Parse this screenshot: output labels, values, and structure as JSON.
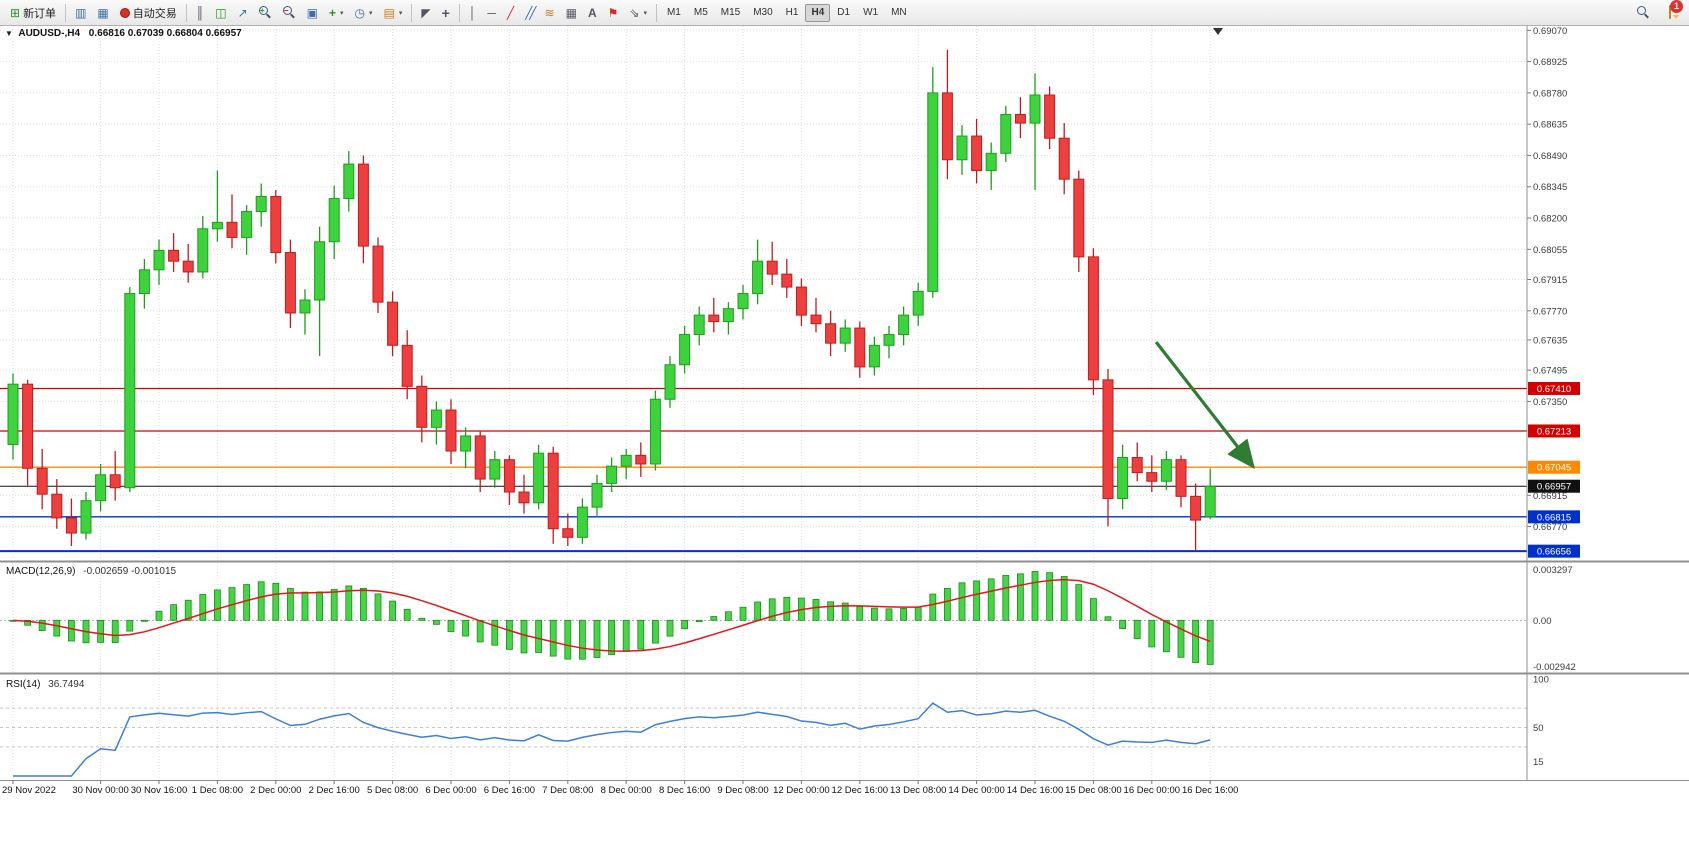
{
  "toolbar": {
    "new_order_label": "新订单",
    "algo_trading_label": "自动交易",
    "timeframes": [
      "M1",
      "M5",
      "M15",
      "M30",
      "H1",
      "H4",
      "D1",
      "W1",
      "MN"
    ],
    "active_timeframe": "H4",
    "notification_count": "1"
  },
  "icons": {
    "title_dropdown": "▼",
    "new_order": "⊞",
    "market_watch": "▥",
    "data_window": "▦",
    "algo_dot": "●",
    "bars": "║",
    "candles": "◫",
    "line": "↗",
    "tile": "▣",
    "indicator_plus": "+",
    "clock": "◷",
    "template": "▤",
    "cursor": "◤",
    "crosshair": "+",
    "vline": "│",
    "hline": "─",
    "trendline": "╱",
    "channel": "╱╱",
    "fibonacci": "≋",
    "shapes": "▦",
    "text_tool": "A",
    "label_flag": "⚑",
    "arrows": "⇘",
    "caret": "▾"
  },
  "chart_data": {
    "type": "candlestick",
    "title": "AUDUSD-,H4",
    "ohlc_text": "0.66816 0.67039 0.66804 0.66957",
    "current": {
      "open": 0.66816,
      "high": 0.67039,
      "low": 0.66804,
      "close": 0.66957
    },
    "price_axis": {
      "top": 0.6909,
      "bottom": 0.66615,
      "ticks": [
        "0.69070",
        "0.68925",
        "0.68780",
        "0.68635",
        "0.68490",
        "0.68345",
        "0.68200",
        "0.68055",
        "0.67915",
        "0.67770",
        "0.67635",
        "0.67495",
        "0.67350",
        "0.66915",
        "0.66770"
      ]
    },
    "levels": [
      {
        "price": 0.6741,
        "label": "0.67410",
        "color": "#d40000",
        "width": 1.2
      },
      {
        "price": 0.67213,
        "label": "0.67213",
        "color": "#d40000",
        "width": 1.2
      },
      {
        "price": 0.67045,
        "label": "0.67045",
        "color": "#ff8a00",
        "width": 1.4
      },
      {
        "price": 0.66957,
        "label": "0.66957",
        "color": "#111111",
        "width": 1
      },
      {
        "price": 0.66815,
        "label": "0.66815",
        "color": "#0030cc",
        "width": 1.4
      },
      {
        "price": 0.66656,
        "label": "0.66656",
        "color": "#0030cc",
        "width": 2
      }
    ],
    "trend_arrow": {
      "from": {
        "bar": 78.3,
        "price": 0.67625
      },
      "to": {
        "bar": 84.8,
        "price": 0.6706
      },
      "color": "#2e7d32"
    },
    "time_labels": [
      {
        "text": "29 Nov 2022",
        "bar": 0
      },
      {
        "text": "30 Nov 00:00",
        "bar": 6
      },
      {
        "text": "30 Nov 16:00",
        "bar": 10
      },
      {
        "text": "1 Dec 08:00",
        "bar": 14
      },
      {
        "text": "2 Dec 00:00",
        "bar": 18
      },
      {
        "text": "2 Dec 16:00",
        "bar": 22
      },
      {
        "text": "5 Dec 08:00",
        "bar": 26
      },
      {
        "text": "6 Dec 00:00",
        "bar": 30
      },
      {
        "text": "6 Dec 16:00",
        "bar": 34
      },
      {
        "text": "7 Dec 08:00",
        "bar": 38
      },
      {
        "text": "8 Dec 00:00",
        "bar": 42
      },
      {
        "text": "8 Dec 16:00",
        "bar": 46
      },
      {
        "text": "9 Dec 08:00",
        "bar": 50
      },
      {
        "text": "12 Dec 00:00",
        "bar": 54
      },
      {
        "text": "12 Dec 16:00",
        "bar": 58
      },
      {
        "text": "13 Dec 08:00",
        "bar": 62
      },
      {
        "text": "14 Dec 00:00",
        "bar": 66
      },
      {
        "text": "14 Dec 16:00",
        "bar": 70
      },
      {
        "text": "15 Dec 08:00",
        "bar": 74
      },
      {
        "text": "16 Dec 00:00",
        "bar": 78
      },
      {
        "text": "16 Dec 16:00",
        "bar": 82
      }
    ],
    "colors": {
      "up_fill": "#3fd23f",
      "up_stroke": "#1d9e1d",
      "down_fill": "#ec3f3f",
      "down_stroke": "#bf1d1d",
      "grid": "#dedede"
    },
    "candles": [
      [
        0.6715,
        0.6748,
        0.6708,
        0.6743
      ],
      [
        0.6743,
        0.6745,
        0.6696,
        0.6704
      ],
      [
        0.6704,
        0.6713,
        0.6685,
        0.6692
      ],
      [
        0.6692,
        0.6699,
        0.6676,
        0.6681
      ],
      [
        0.6681,
        0.669,
        0.6668,
        0.6674
      ],
      [
        0.6674,
        0.6693,
        0.6671,
        0.6689
      ],
      [
        0.6689,
        0.6706,
        0.6684,
        0.6701
      ],
      [
        0.6701,
        0.6712,
        0.6689,
        0.6695
      ],
      [
        0.6695,
        0.6788,
        0.6693,
        0.6785
      ],
      [
        0.6785,
        0.6801,
        0.6778,
        0.6796
      ],
      [
        0.6796,
        0.681,
        0.6789,
        0.6805
      ],
      [
        0.6805,
        0.6813,
        0.6795,
        0.68
      ],
      [
        0.68,
        0.6808,
        0.679,
        0.6795
      ],
      [
        0.6795,
        0.6821,
        0.6792,
        0.6815
      ],
      [
        0.6815,
        0.6842,
        0.6809,
        0.6818
      ],
      [
        0.6818,
        0.6831,
        0.6806,
        0.6811
      ],
      [
        0.6811,
        0.6826,
        0.6803,
        0.6823
      ],
      [
        0.6823,
        0.6836,
        0.6816,
        0.683
      ],
      [
        0.683,
        0.6833,
        0.6799,
        0.6804
      ],
      [
        0.6804,
        0.681,
        0.6769,
        0.6776
      ],
      [
        0.6776,
        0.6787,
        0.6766,
        0.6782
      ],
      [
        0.6782,
        0.6816,
        0.6756,
        0.6809
      ],
      [
        0.6809,
        0.6835,
        0.6801,
        0.6829
      ],
      [
        0.6829,
        0.6851,
        0.6823,
        0.6845
      ],
      [
        0.6845,
        0.6849,
        0.6799,
        0.6807
      ],
      [
        0.6807,
        0.6811,
        0.6776,
        0.6781
      ],
      [
        0.6781,
        0.6786,
        0.6756,
        0.6761
      ],
      [
        0.6761,
        0.6768,
        0.6736,
        0.6742
      ],
      [
        0.6742,
        0.6747,
        0.6716,
        0.6723
      ],
      [
        0.6723,
        0.6735,
        0.6715,
        0.6731
      ],
      [
        0.6731,
        0.6736,
        0.6706,
        0.6712
      ],
      [
        0.6712,
        0.6723,
        0.6704,
        0.6719
      ],
      [
        0.6719,
        0.6721,
        0.6693,
        0.6699
      ],
      [
        0.6699,
        0.6712,
        0.6695,
        0.6708
      ],
      [
        0.6708,
        0.671,
        0.6687,
        0.6693
      ],
      [
        0.6693,
        0.6701,
        0.6683,
        0.6688
      ],
      [
        0.6688,
        0.6715,
        0.6685,
        0.6711
      ],
      [
        0.6711,
        0.6714,
        0.6669,
        0.6676
      ],
      [
        0.6676,
        0.6683,
        0.6668,
        0.6672
      ],
      [
        0.6672,
        0.669,
        0.6669,
        0.6686
      ],
      [
        0.6686,
        0.6701,
        0.6682,
        0.6697
      ],
      [
        0.6697,
        0.6709,
        0.6693,
        0.6705
      ],
      [
        0.6705,
        0.6713,
        0.6699,
        0.671
      ],
      [
        0.671,
        0.6716,
        0.67,
        0.6706
      ],
      [
        0.6706,
        0.674,
        0.6703,
        0.6736
      ],
      [
        0.6736,
        0.6756,
        0.6732,
        0.6752
      ],
      [
        0.6752,
        0.677,
        0.6748,
        0.6766
      ],
      [
        0.6766,
        0.6779,
        0.6761,
        0.6775
      ],
      [
        0.6775,
        0.6783,
        0.6767,
        0.6772
      ],
      [
        0.6772,
        0.6781,
        0.6766,
        0.6778
      ],
      [
        0.6778,
        0.6789,
        0.6773,
        0.6785
      ],
      [
        0.6785,
        0.681,
        0.678,
        0.68
      ],
      [
        0.68,
        0.6809,
        0.6789,
        0.6794
      ],
      [
        0.6794,
        0.6801,
        0.6783,
        0.6788
      ],
      [
        0.6788,
        0.6792,
        0.677,
        0.6775
      ],
      [
        0.6775,
        0.6783,
        0.6767,
        0.6771
      ],
      [
        0.6771,
        0.6777,
        0.6756,
        0.6762
      ],
      [
        0.6762,
        0.6773,
        0.6758,
        0.6769
      ],
      [
        0.6769,
        0.6772,
        0.6746,
        0.6751
      ],
      [
        0.6751,
        0.6765,
        0.6747,
        0.6761
      ],
      [
        0.6761,
        0.677,
        0.6755,
        0.6766
      ],
      [
        0.6766,
        0.6779,
        0.6761,
        0.6775
      ],
      [
        0.6775,
        0.679,
        0.677,
        0.6786
      ],
      [
        0.6786,
        0.689,
        0.6783,
        0.6878
      ],
      [
        0.6878,
        0.6898,
        0.6838,
        0.6847
      ],
      [
        0.6847,
        0.6863,
        0.684,
        0.6858
      ],
      [
        0.6858,
        0.6866,
        0.6836,
        0.6842
      ],
      [
        0.6842,
        0.6855,
        0.6833,
        0.685
      ],
      [
        0.685,
        0.6872,
        0.6846,
        0.6868
      ],
      [
        0.6868,
        0.6876,
        0.6857,
        0.6864
      ],
      [
        0.6864,
        0.6887,
        0.6833,
        0.6877
      ],
      [
        0.6877,
        0.6881,
        0.6852,
        0.6857
      ],
      [
        0.6857,
        0.6864,
        0.6831,
        0.6838
      ],
      [
        0.6838,
        0.6842,
        0.6795,
        0.6802
      ],
      [
        0.6802,
        0.6806,
        0.6738,
        0.6745
      ],
      [
        0.6745,
        0.675,
        0.6677,
        0.669
      ],
      [
        0.669,
        0.6715,
        0.6685,
        0.6709
      ],
      [
        0.6709,
        0.6716,
        0.6698,
        0.6702
      ],
      [
        0.6702,
        0.671,
        0.6693,
        0.6698
      ],
      [
        0.6698,
        0.6712,
        0.6694,
        0.6708
      ],
      [
        0.6708,
        0.671,
        0.6686,
        0.6691
      ],
      [
        0.6691,
        0.6697,
        0.6666,
        0.668
      ],
      [
        0.66816,
        0.67039,
        0.66804,
        0.66957
      ]
    ],
    "macd": {
      "label": "MACD(12,26,9)",
      "values_text": "-0.002659 -0.001015",
      "fast": 12,
      "slow": 26,
      "signal": 9,
      "axis": {
        "max": 0.003297,
        "min": -0.002942,
        "ticks": [
          "0.003297",
          "0.00",
          "-0.002942"
        ]
      },
      "colors": {
        "hist_fill": "#4ad24a",
        "hist_stroke": "#189018",
        "signal": "#e01818"
      }
    },
    "rsi": {
      "label": "RSI(14)",
      "value_text": "36.7494",
      "period": 14,
      "levels": [
        70,
        50,
        30
      ],
      "axis_ticks": [
        {
          "v": 100,
          "text": "100"
        },
        {
          "v": 50,
          "text": "50"
        },
        {
          "v": 15,
          "text": "15"
        }
      ],
      "color": "#3d7edb"
    }
  }
}
